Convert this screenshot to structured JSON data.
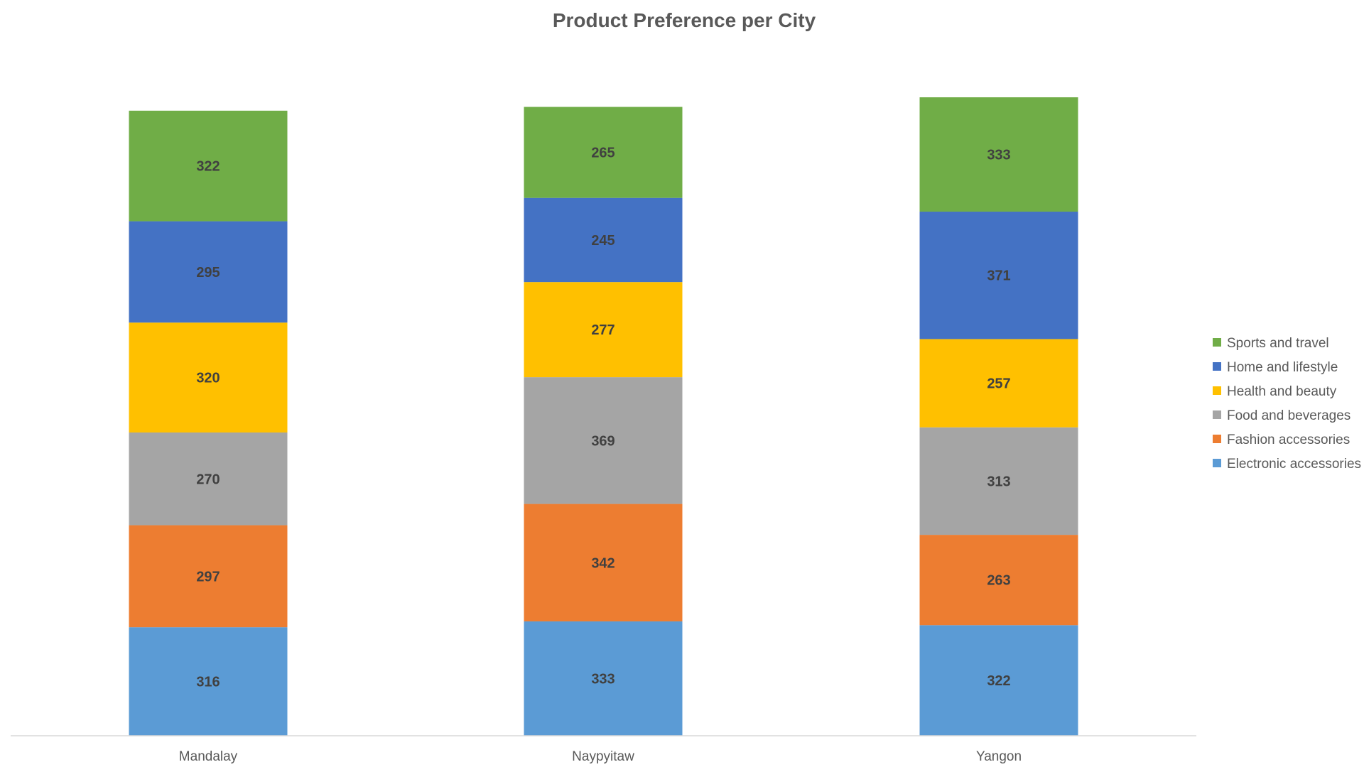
{
  "chart_data": {
    "type": "bar",
    "stacked": true,
    "title": "Product Preference per City",
    "xlabel": "",
    "ylabel": "",
    "ylim": [
      0,
      1900
    ],
    "grid": false,
    "legend_position": "right",
    "categories": [
      "Mandalay",
      "Naypyitaw",
      "Yangon"
    ],
    "series": [
      {
        "name": "Electronic accessories",
        "color": "#5B9BD5",
        "values": [
          316,
          333,
          322
        ]
      },
      {
        "name": "Fashion accessories",
        "color": "#ED7D31",
        "values": [
          297,
          342,
          263
        ]
      },
      {
        "name": "Food and beverages",
        "color": "#A5A5A5",
        "values": [
          270,
          369,
          313
        ]
      },
      {
        "name": "Health and beauty",
        "color": "#FFC000",
        "values": [
          320,
          277,
          257
        ]
      },
      {
        "name": "Home and lifestyle",
        "color": "#4472C4",
        "values": [
          295,
          245,
          371
        ]
      },
      {
        "name": "Sports and travel",
        "color": "#70AD47",
        "values": [
          322,
          265,
          333
        ]
      }
    ]
  }
}
